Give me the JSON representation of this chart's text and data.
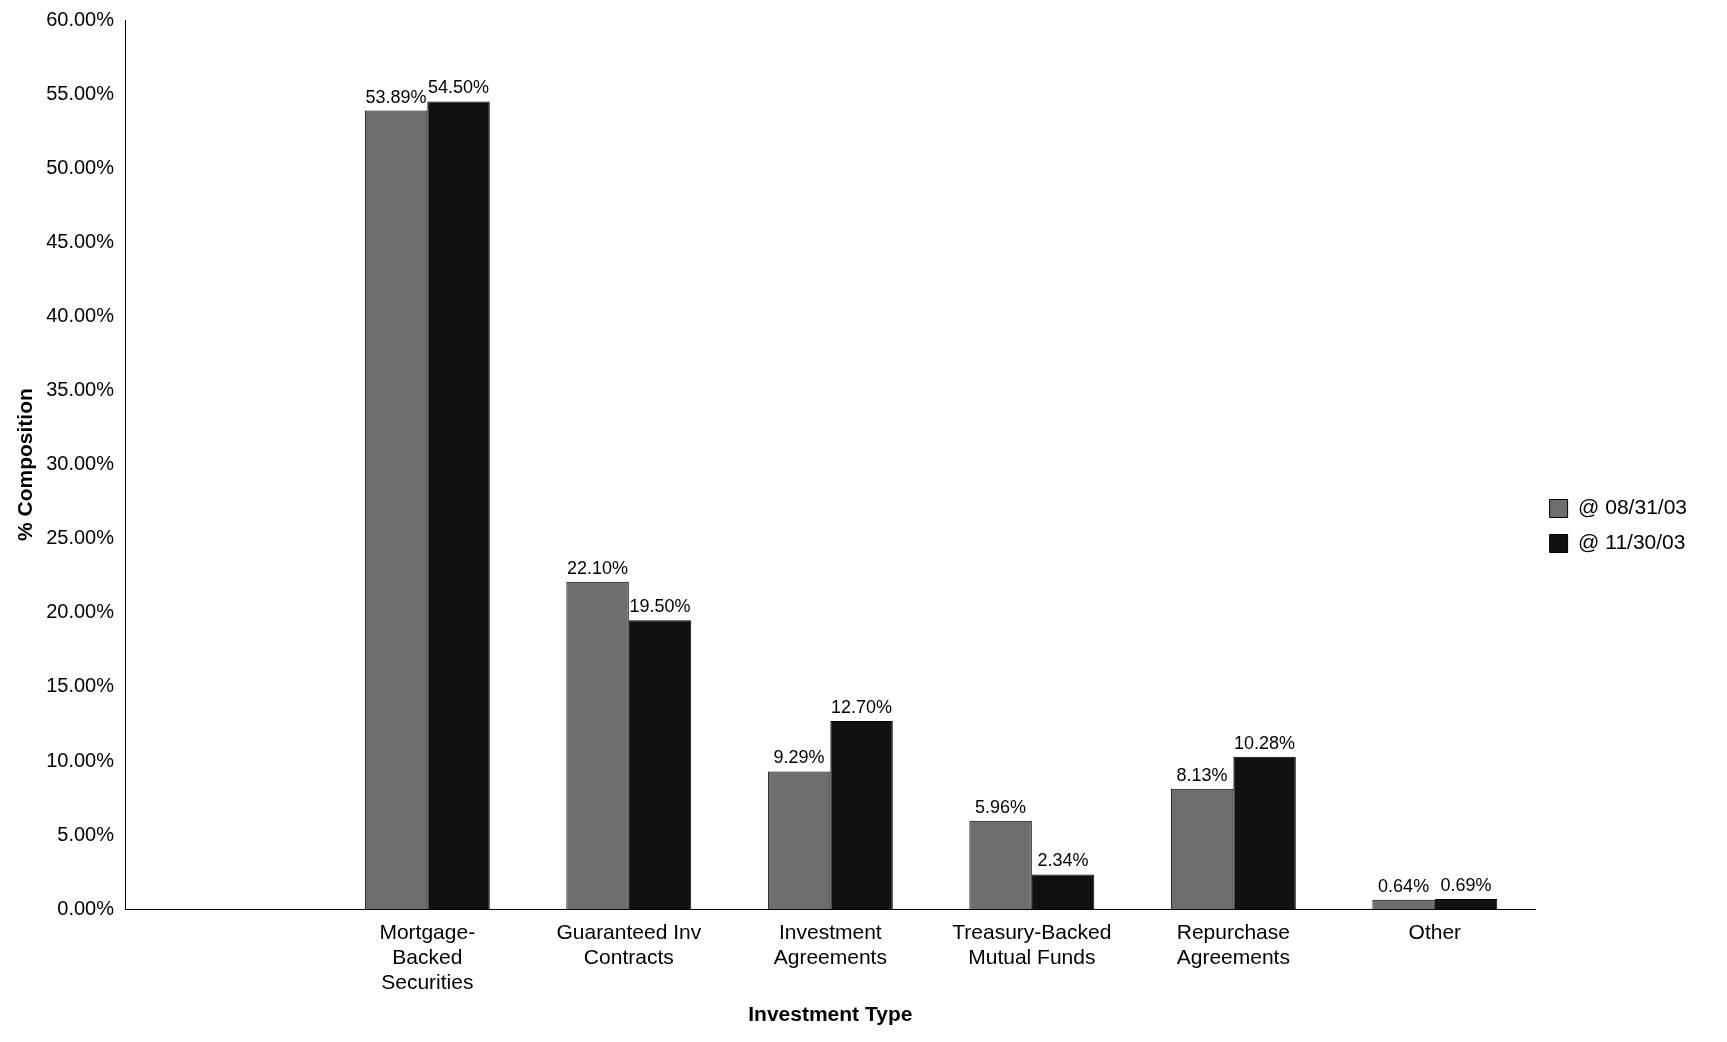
{
  "chart_data": {
    "type": "bar",
    "xlabel": "Investment Type",
    "ylabel": "% Composition",
    "categories": [
      null,
      "Mortgage-\nBacked\nSecurities",
      "Guaranteed Inv\nContracts",
      "Investment\nAgreements",
      "Treasury-Backed\nMutual Funds",
      "Repurchase\nAgreements",
      "Other"
    ],
    "series": [
      {
        "name": "@ 08/31/03",
        "color": "#6e6e6e",
        "values": [
          null,
          53.89,
          22.1,
          9.29,
          5.96,
          8.13,
          0.64
        ],
        "value_labels": [
          null,
          "53.89%",
          "22.10%",
          "9.29%",
          "5.96%",
          "8.13%",
          "0.64%"
        ]
      },
      {
        "name": "@ 11/30/03",
        "color": "#111111",
        "values": [
          null,
          54.5,
          19.5,
          12.7,
          2.34,
          10.28,
          0.69
        ],
        "value_labels": [
          null,
          "54.50%",
          "19.50%",
          "12.70%",
          "2.34%",
          "10.28%",
          "0.69%"
        ]
      }
    ],
    "ylim": [
      0,
      60
    ],
    "yticks": [
      {
        "value": 0,
        "label": "0.00%"
      },
      {
        "value": 5,
        "label": "5.00%"
      },
      {
        "value": 10,
        "label": "10.00%"
      },
      {
        "value": 15,
        "label": "15.00%"
      },
      {
        "value": 20,
        "label": "20.00%"
      },
      {
        "value": 25,
        "label": "25.00%"
      },
      {
        "value": 30,
        "label": "30.00%"
      },
      {
        "value": 35,
        "label": "35.00%"
      },
      {
        "value": 40,
        "label": "40.00%"
      },
      {
        "value": 45,
        "label": "45.00%"
      },
      {
        "value": 50,
        "label": "50.00%"
      },
      {
        "value": 55,
        "label": "55.00%"
      },
      {
        "value": 60,
        "label": "60.00%"
      }
    ],
    "grid": false,
    "legend": "right"
  }
}
